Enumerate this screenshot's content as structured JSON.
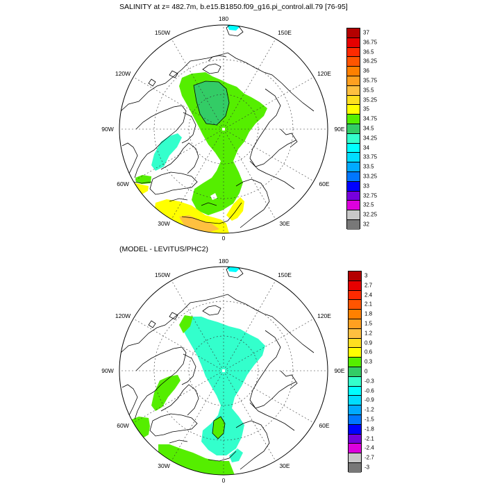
{
  "top_panel": {
    "title": "SALINITY at z= 482.7m, b.e15.B1850.f09_g16.pi_control.all.79 [76-95]",
    "lon_labels": {
      "n": "180",
      "nw": "150W",
      "ne": "150E",
      "wnw": "120W",
      "ene": "120E",
      "w": "90W",
      "e": "90E",
      "wsw": "60W",
      "ese": "60E",
      "ssw": "30W",
      "sse": "30E",
      "s": "0"
    },
    "colorbar": {
      "labels": [
        "37",
        "36.75",
        "36.5",
        "36.25",
        "36",
        "35.75",
        "35.5",
        "35.25",
        "35",
        "34.75",
        "34.5",
        "34.25",
        "34",
        "33.75",
        "33.5",
        "33.25",
        "33",
        "32.75",
        "32.5",
        "32.25",
        "32"
      ],
      "colors": [
        "#b40000",
        "#e60000",
        "#ff2a00",
        "#ff5500",
        "#ff8000",
        "#ffa020",
        "#ffc040",
        "#ffdf20",
        "#ffff00",
        "#55ee00",
        "#33cc66",
        "#33ffcc",
        "#00ffff",
        "#00ddff",
        "#00aaff",
        "#0077ff",
        "#0000ff",
        "#7700dd",
        "#dd00dd",
        "#c8c8c8",
        "#787878"
      ]
    }
  },
  "bottom_panel": {
    "title": "(MODEL - LEVITUS/PHC2)",
    "lon_labels": {
      "n": "180",
      "nw": "150W",
      "ne": "150E",
      "wnw": "120W",
      "ene": "120E",
      "w": "90W",
      "e": "90E",
      "wsw": "60W",
      "ese": "60E",
      "ssw": "30W",
      "sse": "30E",
      "s": "0"
    },
    "colorbar": {
      "labels": [
        "3",
        "2.7",
        "2.4",
        "2.1",
        "1.8",
        "1.5",
        "1.2",
        "0.9",
        "0.6",
        "0.3",
        "0",
        "-0.3",
        "-0.6",
        "-0.9",
        "-1.2",
        "-1.5",
        "-1.8",
        "-2.1",
        "-2.4",
        "-2.7",
        "-3"
      ],
      "colors": [
        "#b40000",
        "#e60000",
        "#ff2a00",
        "#ff5500",
        "#ff8000",
        "#ffa020",
        "#ffc040",
        "#ffdf20",
        "#ffff00",
        "#55ee00",
        "#33cc66",
        "#33ffcc",
        "#00ffff",
        "#00ddff",
        "#00aaff",
        "#0077ff",
        "#0000ff",
        "#7700dd",
        "#dd00dd",
        "#c8c8c8",
        "#787878"
      ]
    }
  }
}
